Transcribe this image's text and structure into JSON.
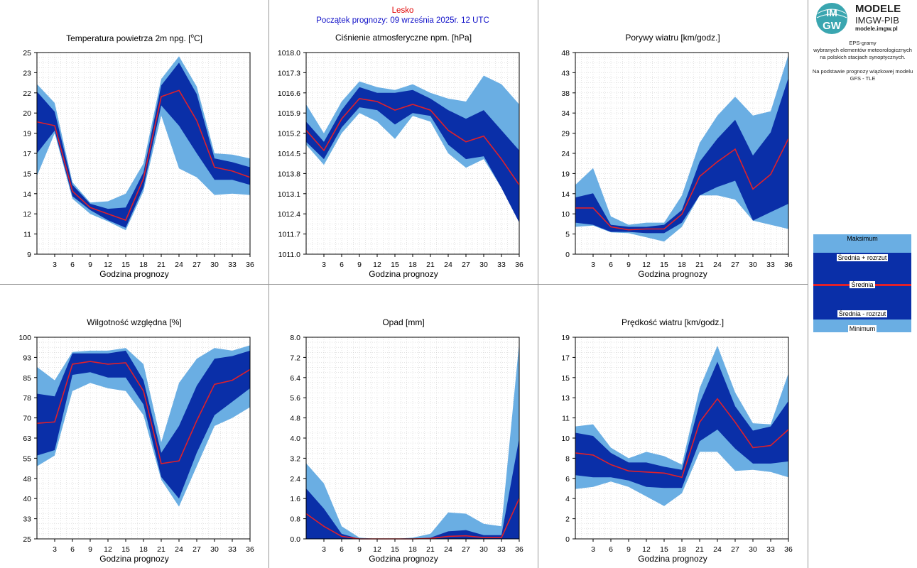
{
  "header": {
    "location": "Lesko",
    "forecast_start": "Początek prognozy: 09 września 2025r. 12 UTC"
  },
  "sidebar": {
    "logo_line1": "MODELE",
    "logo_line2": "IMGW-PIB",
    "logo_line3": "modele.imgw.pl",
    "logo_badge_top": "IM",
    "logo_badge_bottom": "GW",
    "desc_lines": [
      "EPS-gramy",
      "wybranych elementów meteorologicznych",
      "na polskich stacjach  synoptycznych.",
      "",
      "Na podstawie prognozy wiązkowej modelu",
      "GFS - TLE"
    ],
    "legend": {
      "max": "Maksimum",
      "mean_plus": "Średnia + rozrzut",
      "mean": "Średnia",
      "mean_minus": "Średnia - rozrzut",
      "min": "Minimum"
    }
  },
  "colors": {
    "outer_band": "#6aaee3",
    "inner_band": "#0a2fa8",
    "mean_line": "#e0202a",
    "grid": "#c8c8c8"
  },
  "chart_data": [
    {
      "type": "area",
      "title": "Temperatura powietrza 2m npg. [",
      "title_sup": "o",
      "title_end": "C]",
      "xlabel": "Godzina prognozy",
      "x": [
        0,
        3,
        6,
        9,
        12,
        15,
        18,
        21,
        24,
        27,
        30,
        33,
        36
      ],
      "xticks": [
        "3",
        "6",
        "9",
        "12",
        "15",
        "18",
        "21",
        "24",
        "27",
        "30",
        "33",
        "36"
      ],
      "ylim": [
        9,
        25
      ],
      "yticks": [
        "9",
        "11",
        "12",
        "14",
        "15",
        "17",
        "19",
        "20",
        "22",
        "23",
        "25"
      ],
      "series": [
        {
          "name": "Minimum",
          "values": [
            15.2,
            18.6,
            13.4,
            12.2,
            11.6,
            10.9,
            14.0,
            20.0,
            15.8,
            15.1,
            13.7,
            13.8,
            13.7
          ]
        },
        {
          "name": "Średnia - rozrzut",
          "values": [
            17.0,
            18.8,
            13.6,
            12.5,
            11.7,
            11.1,
            14.3,
            20.8,
            19.2,
            17.0,
            14.9,
            14.9,
            14.5
          ]
        },
        {
          "name": "Średnia",
          "values": [
            19.5,
            19.2,
            14.0,
            12.7,
            12.2,
            11.7,
            15.0,
            21.5,
            22.0,
            19.6,
            15.9,
            15.6,
            15.1
          ]
        },
        {
          "name": "Średnia + rozrzut",
          "values": [
            21.9,
            20.3,
            14.5,
            13.0,
            12.6,
            12.7,
            15.5,
            22.4,
            24.2,
            21.7,
            16.6,
            16.3,
            15.9
          ]
        },
        {
          "name": "Maksimum",
          "values": [
            22.5,
            21.0,
            14.7,
            13.1,
            13.2,
            13.8,
            16.2,
            22.9,
            24.7,
            22.3,
            17.0,
            16.9,
            16.6
          ]
        }
      ]
    },
    {
      "type": "area",
      "title": "Ciśnienie atmosferyczne npm. [hPa]",
      "xlabel": "Godzina prognozy",
      "x": [
        0,
        3,
        6,
        9,
        12,
        15,
        18,
        21,
        24,
        27,
        30,
        33,
        36
      ],
      "xticks": [
        "3",
        "6",
        "9",
        "12",
        "15",
        "18",
        "21",
        "24",
        "27",
        "30",
        "33",
        "36"
      ],
      "ylim": [
        1011.0,
        1018.0
      ],
      "yticks": [
        "1011.0",
        "1011.7",
        "1012.4",
        "1013.1",
        "1013.8",
        "1014.5",
        "1015.2",
        "1015.9",
        "1016.6",
        "1017.3",
        "1018.0"
      ],
      "series": [
        {
          "name": "Minimum",
          "values": [
            1014.8,
            1014.1,
            1015.2,
            1015.9,
            1015.6,
            1015.0,
            1015.8,
            1015.6,
            1014.5,
            1014.0,
            1014.3,
            1013.3,
            1012.1
          ]
        },
        {
          "name": "Średnia - rozrzut",
          "values": [
            1014.9,
            1014.3,
            1015.4,
            1016.1,
            1016.0,
            1015.5,
            1015.9,
            1015.8,
            1014.8,
            1014.3,
            1014.4,
            1013.3,
            1012.1
          ]
        },
        {
          "name": "Średnia",
          "values": [
            1015.3,
            1014.6,
            1015.7,
            1016.4,
            1016.3,
            1016.0,
            1016.2,
            1016.0,
            1015.3,
            1014.9,
            1015.1,
            1014.3,
            1013.4
          ]
        },
        {
          "name": "Średnia + rozrzut",
          "values": [
            1015.6,
            1014.9,
            1016.0,
            1016.8,
            1016.6,
            1016.6,
            1016.7,
            1016.4,
            1016.0,
            1015.7,
            1016.0,
            1015.3,
            1014.6
          ]
        },
        {
          "name": "Maksimum",
          "values": [
            1016.2,
            1015.2,
            1016.3,
            1017.0,
            1016.8,
            1016.7,
            1016.9,
            1016.6,
            1016.4,
            1016.3,
            1017.2,
            1016.9,
            1016.2
          ]
        }
      ]
    },
    {
      "type": "area",
      "title": "Porywy wiatru [km/godz.]",
      "xlabel": "Godzina prognozy",
      "x": [
        0,
        3,
        6,
        9,
        12,
        15,
        18,
        21,
        24,
        27,
        30,
        33,
        36
      ],
      "xticks": [
        "3",
        "6",
        "9",
        "12",
        "15",
        "18",
        "21",
        "24",
        "27",
        "30",
        "33",
        "36"
      ],
      "ylim": [
        0,
        48
      ],
      "yticks": [
        "0",
        "5",
        "10",
        "14",
        "19",
        "24",
        "29",
        "34",
        "38",
        "43",
        "48"
      ],
      "series": [
        {
          "name": "Minimum",
          "values": [
            6.5,
            6.8,
            5.2,
            5.0,
            4.0,
            3.0,
            6.5,
            14.0,
            14.0,
            13.0,
            8.0,
            7.0,
            6.0
          ]
        },
        {
          "name": "Średnia - rozrzut",
          "values": [
            7.5,
            7.0,
            5.3,
            5.3,
            5.0,
            5.0,
            7.5,
            14.0,
            16.0,
            17.5,
            8.0,
            10.0,
            12.0
          ]
        },
        {
          "name": "Średnia",
          "values": [
            11.0,
            11.0,
            6.5,
            5.8,
            6.0,
            6.0,
            9.5,
            18.5,
            22.0,
            25.0,
            15.5,
            19.0,
            27.5
          ]
        },
        {
          "name": "Średnia + rozrzut",
          "values": [
            13.5,
            14.5,
            7.0,
            6.5,
            6.5,
            7.0,
            10.5,
            22.0,
            27.5,
            32.0,
            23.5,
            29.0,
            42.0
          ]
        },
        {
          "name": "Maksimum",
          "values": [
            16.5,
            20.5,
            9.0,
            7.0,
            7.5,
            7.5,
            14.0,
            26.5,
            33.0,
            37.5,
            33.0,
            34.0,
            47.5
          ]
        }
      ]
    },
    {
      "type": "area",
      "title": "Wilgotność względna [%]",
      "xlabel": "Godzina prognozy",
      "x": [
        0,
        3,
        6,
        9,
        12,
        15,
        18,
        21,
        24,
        27,
        30,
        33,
        36
      ],
      "xticks": [
        "3",
        "6",
        "9",
        "12",
        "15",
        "18",
        "21",
        "24",
        "27",
        "30",
        "33",
        "36"
      ],
      "ylim": [
        25,
        100
      ],
      "yticks": [
        "25",
        "33",
        "40",
        "48",
        "55",
        "63",
        "70",
        "78",
        "85",
        "93",
        "100"
      ],
      "series": [
        {
          "name": "Minimum",
          "values": [
            52,
            56,
            80,
            83,
            81,
            80,
            71,
            47,
            37,
            52,
            67,
            70,
            74
          ]
        },
        {
          "name": "Średnia - rozrzut",
          "values": [
            56,
            58,
            86,
            87,
            85,
            85,
            75,
            48,
            40,
            57,
            71,
            76,
            81
          ]
        },
        {
          "name": "Średnia",
          "values": [
            68,
            68.5,
            90,
            91,
            90,
            90.5,
            80,
            53,
            54,
            69,
            82.5,
            84,
            88
          ]
        },
        {
          "name": "Średnia + rozrzut",
          "values": [
            79,
            78,
            94,
            94,
            94,
            95,
            84,
            57,
            67,
            82,
            92,
            93,
            95
          ]
        },
        {
          "name": "Maksimum",
          "values": [
            89,
            84,
            94.5,
            95,
            95,
            96,
            90,
            61,
            83,
            92,
            96,
            95,
            97
          ]
        }
      ]
    },
    {
      "type": "area",
      "title": "Opad [mm]",
      "xlabel": "Godzina prognozy",
      "x": [
        0,
        3,
        6,
        9,
        12,
        15,
        18,
        21,
        24,
        27,
        30,
        33,
        36
      ],
      "xticks": [
        "3",
        "6",
        "9",
        "12",
        "15",
        "18",
        "21",
        "24",
        "27",
        "30",
        "33",
        "36"
      ],
      "ylim": [
        0,
        8
      ],
      "yticks": [
        "0.0",
        "0.8",
        "1.6",
        "2.4",
        "3.2",
        "4.0",
        "4.8",
        "5.6",
        "6.4",
        "7.2",
        "8.0"
      ],
      "series": [
        {
          "name": "Minimum",
          "values": [
            0,
            0,
            0,
            0,
            0,
            0,
            0,
            0,
            0,
            0,
            0,
            0,
            0
          ]
        },
        {
          "name": "Średnia - rozrzut",
          "values": [
            0,
            0,
            0,
            0,
            0,
            0,
            0,
            0,
            0,
            0,
            0,
            0,
            0
          ]
        },
        {
          "name": "Średnia",
          "values": [
            1.0,
            0.5,
            0.1,
            0,
            0,
            0,
            0,
            0.02,
            0.1,
            0.12,
            0.05,
            0.05,
            1.6
          ]
        },
        {
          "name": "Średnia + rozrzut",
          "values": [
            2.0,
            1.2,
            0.2,
            0,
            0,
            0,
            0,
            0.05,
            0.3,
            0.35,
            0.15,
            0.15,
            4.0
          ]
        },
        {
          "name": "Maksimum",
          "values": [
            3.0,
            2.2,
            0.5,
            0.05,
            0,
            0,
            0.05,
            0.2,
            1.05,
            1.0,
            0.6,
            0.5,
            7.8
          ]
        }
      ]
    },
    {
      "type": "area",
      "title": "Prędkość wiatru [km/godz.]",
      "xlabel": "Godzina prognozy",
      "x": [
        0,
        3,
        6,
        9,
        12,
        15,
        18,
        21,
        24,
        27,
        30,
        33,
        36
      ],
      "xticks": [
        "3",
        "6",
        "9",
        "12",
        "15",
        "18",
        "21",
        "24",
        "27",
        "30",
        "33",
        "36"
      ],
      "ylim": [
        0,
        19
      ],
      "yticks": [
        "0",
        "2",
        "4",
        "6",
        "8",
        "10",
        "11",
        "13",
        "15",
        "17",
        "19"
      ],
      "series": [
        {
          "name": "Minimum",
          "values": [
            4.7,
            4.9,
            5.4,
            4.9,
            4.0,
            3.1,
            4.3,
            8.2,
            8.2,
            6.4,
            6.5,
            6.3,
            5.8
          ]
        },
        {
          "name": "Średnia - rozrzut",
          "values": [
            6.0,
            5.8,
            5.8,
            5.5,
            4.9,
            4.8,
            4.8,
            9.2,
            10.3,
            8.5,
            7.1,
            7.1,
            7.3
          ]
        },
        {
          "name": "Średnia",
          "values": [
            8.1,
            7.9,
            7.0,
            6.4,
            6.3,
            6.2,
            5.8,
            11.0,
            13.2,
            11.0,
            8.6,
            8.8,
            10.3
          ]
        },
        {
          "name": "Średnia + rozrzut",
          "values": [
            10.0,
            9.7,
            8.1,
            7.2,
            7.2,
            6.8,
            6.5,
            12.8,
            16.7,
            12.5,
            10.2,
            10.6,
            13.0
          ]
        },
        {
          "name": "Maksimum",
          "values": [
            10.6,
            10.8,
            8.6,
            7.6,
            8.2,
            7.8,
            7.0,
            14.2,
            18.2,
            13.8,
            10.9,
            10.8,
            15.6
          ]
        }
      ]
    }
  ]
}
